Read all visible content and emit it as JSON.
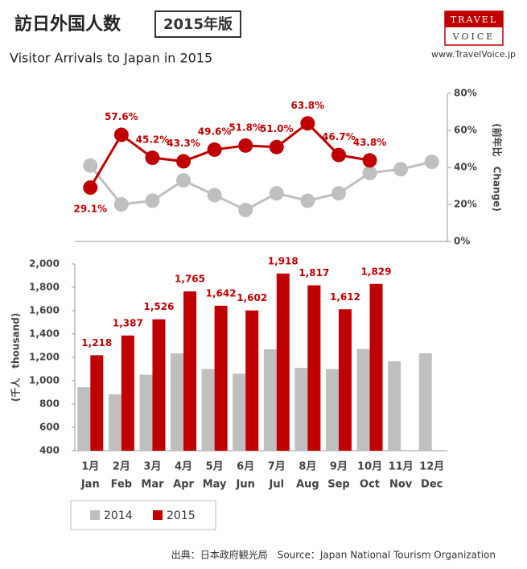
{
  "header": {
    "title": "訪日外国人数",
    "badge": "2015年版",
    "subtitle": "Visitor Arrivals to Japan in 2015"
  },
  "logo": {
    "line1": "TRAVEL",
    "line2": "VOICE",
    "url": "www.TravelVoice.jp"
  },
  "source": "出典：日本政府観光局　Source：Japan  National Tourism  Organization",
  "chart_data": [
    {
      "type": "line",
      "y_label": "(前年比　Change)",
      "ylim": [
        0,
        80
      ],
      "yticks": [
        {
          "value": 0,
          "label": "0%"
        },
        {
          "value": 20,
          "label": "20%"
        },
        {
          "value": 40,
          "label": "40%"
        },
        {
          "value": 60,
          "label": "60%"
        },
        {
          "value": 80,
          "label": "80%"
        }
      ],
      "series": [
        {
          "color": "#bfbfbf",
          "values": [
            41,
            20,
            22,
            33,
            25,
            17,
            26,
            22,
            26,
            37,
            39,
            43
          ]
        },
        {
          "color": "#c00000",
          "values": [
            29.1,
            57.6,
            45.2,
            43.3,
            49.6,
            51.8,
            51.0,
            63.8,
            46.7,
            43.8,
            null,
            null
          ],
          "value_labels": [
            "29.1%",
            "57.6%",
            "45.2%",
            "43.3%",
            "49.6%",
            "51.8%",
            "51.0%",
            "63.8%",
            "46.7%",
            "43.8%",
            null,
            null
          ]
        }
      ]
    },
    {
      "type": "bar",
      "y_label": "(千人　thousand)",
      "categories": [
        "1月",
        "2月",
        "3月",
        "4月",
        "5月",
        "6月",
        "7月",
        "8月",
        "9月",
        "10月",
        "11月",
        "12月"
      ],
      "categories_en": [
        "Jan",
        "Feb",
        "Mar",
        "Apr",
        "May",
        "Jun",
        "Jul",
        "Aug",
        "Sep",
        "Oct",
        "Nov",
        "Dec"
      ],
      "ylim": [
        400,
        2000
      ],
      "yticks": [
        {
          "value": 400,
          "label": "400"
        },
        {
          "value": 600,
          "label": "600"
        },
        {
          "value": 800,
          "label": "800"
        },
        {
          "value": 1000,
          "label": "1,000"
        },
        {
          "value": 1200,
          "label": "1,200"
        },
        {
          "value": 1400,
          "label": "1,400"
        },
        {
          "value": 1600,
          "label": "1,600"
        },
        {
          "value": 1800,
          "label": "1,800"
        },
        {
          "value": 2000,
          "label": "2,000"
        }
      ],
      "series": [
        {
          "name": "2014",
          "color": "#bfbfbf",
          "values": [
            944,
            883,
            1051,
            1234,
            1100,
            1060,
            1269,
            1110,
            1100,
            1272,
            1167,
            1234
          ]
        },
        {
          "name": "2015",
          "color": "#c00000",
          "values": [
            1218,
            1387,
            1526,
            1765,
            1642,
            1602,
            1918,
            1817,
            1612,
            1829,
            null,
            null
          ],
          "value_labels": [
            "1,218",
            "1,387",
            "1,526",
            "1,765",
            "1,642",
            "1,602",
            "1,918",
            "1,817",
            "1,612",
            "1,829",
            null,
            null
          ]
        }
      ]
    }
  ]
}
